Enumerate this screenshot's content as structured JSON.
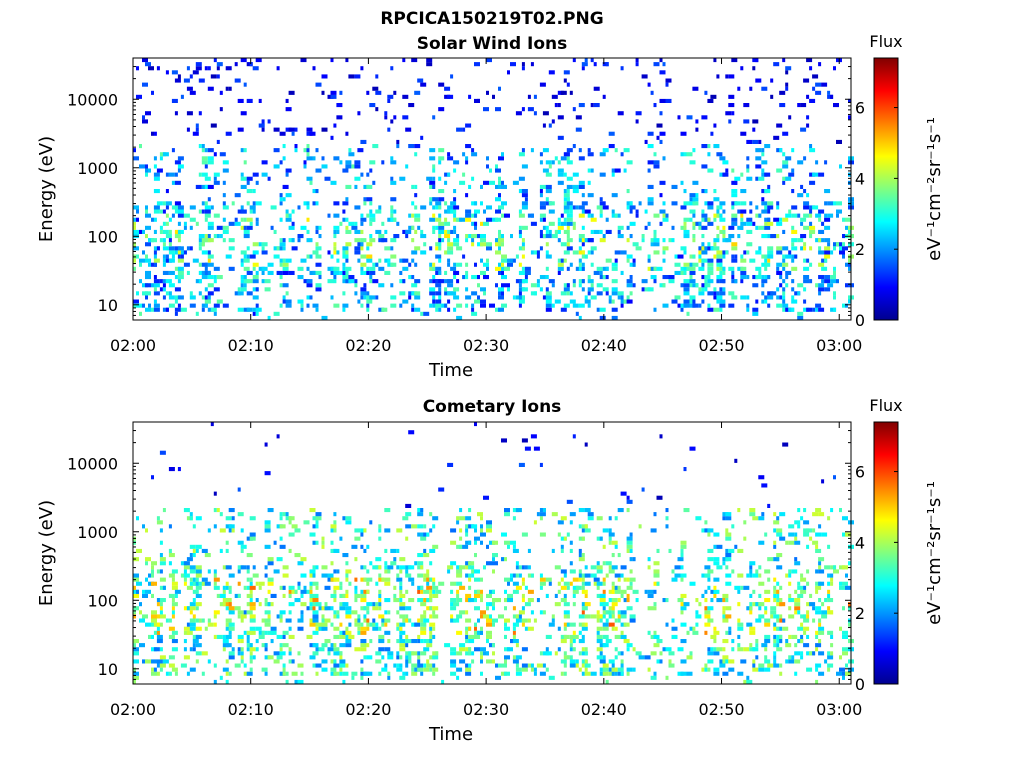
{
  "figure": {
    "title": "RPCICA150219T02.PNG"
  },
  "colorbar_stops": [
    "#00008f",
    "#0000ff",
    "#0080ff",
    "#00ffff",
    "#80ff80",
    "#ffff00",
    "#ff8000",
    "#ff0000",
    "#800000"
  ],
  "chart_data": [
    {
      "type": "heatmap",
      "title": "Solar Wind Ions",
      "xlabel": "Time",
      "ylabel": "Energy (eV)",
      "xlim": [
        "02:00",
        "03:01"
      ],
      "ylim": [
        6,
        40000
      ],
      "yscale": "log",
      "x_ticks": [
        "02:00",
        "02:10",
        "02:20",
        "02:30",
        "02:40",
        "02:50",
        "03:00"
      ],
      "y_ticks": [
        "10",
        "100",
        "1000",
        "10000"
      ],
      "colorbar": {
        "title": "Flux",
        "label": "eV⁻¹cm⁻²sr⁻¹s⁻¹",
        "range": [
          0,
          7.4
        ],
        "ticks": [
          "0",
          "2",
          "4",
          "6"
        ]
      },
      "seed": 7,
      "profile": {
        "low_energy": [
          7,
          300
        ],
        "mid_energy": [
          300,
          2200
        ],
        "high_energy": [
          2200,
          40000
        ],
        "high_energy_density": 0.35,
        "mean_flux": 2.2
      }
    },
    {
      "type": "heatmap",
      "title": "Cometary Ions",
      "xlabel": "Time",
      "ylabel": "Energy (eV)",
      "xlim": [
        "02:00",
        "03:01"
      ],
      "ylim": [
        6,
        40000
      ],
      "yscale": "log",
      "x_ticks": [
        "02:00",
        "02:10",
        "02:20",
        "02:30",
        "02:40",
        "02:50",
        "03:00"
      ],
      "y_ticks": [
        "10",
        "100",
        "1000",
        "10000"
      ],
      "colorbar": {
        "title": "Flux",
        "label": "eV⁻¹cm⁻²sr⁻¹s⁻¹",
        "range": [
          0,
          7.4
        ],
        "ticks": [
          "0",
          "2",
          "4",
          "6"
        ]
      },
      "seed": 19,
      "profile": {
        "low_energy": [
          7,
          300
        ],
        "mid_energy": [
          300,
          2200
        ],
        "high_energy": [
          2200,
          40000
        ],
        "high_energy_density": 0.04,
        "mean_flux": 3.0
      }
    }
  ]
}
